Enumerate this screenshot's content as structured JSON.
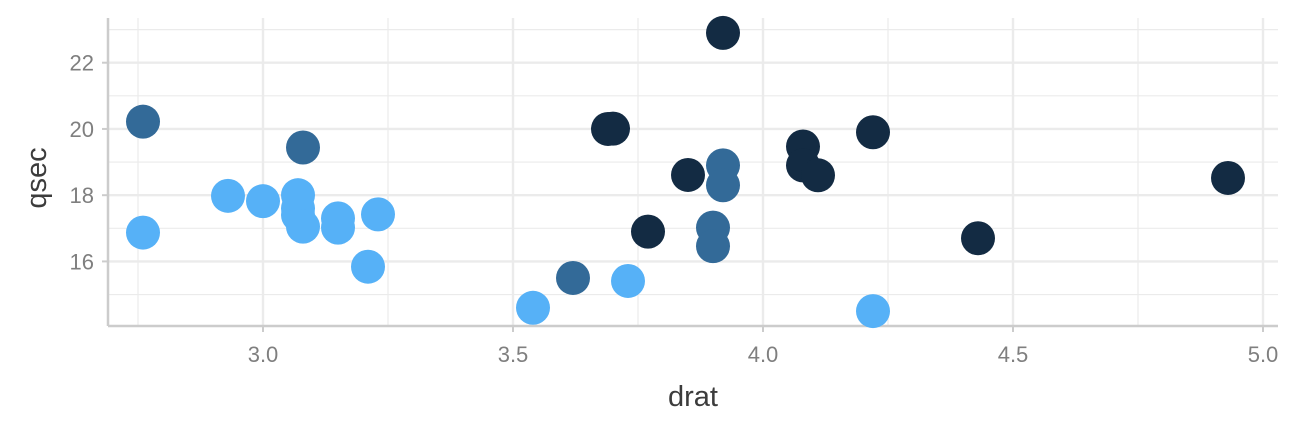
{
  "chart_data": {
    "type": "scatter",
    "xlabel": "drat",
    "ylabel": "qsec",
    "xlim": [
      2.69,
      5.03
    ],
    "ylim": [
      14.05,
      23.35
    ],
    "x_ticks": [
      "3.0",
      "3.5",
      "4.0",
      "4.5",
      "5.0"
    ],
    "y_ticks": [
      "16",
      "18",
      "20",
      "22"
    ],
    "grid": true,
    "legend": "none",
    "colors": {
      "light": "#56b1f7",
      "mid": "#336a98",
      "dark": "#132b43",
      "grid": "#ebebeb",
      "axis": "#cccccc"
    },
    "points": [
      {
        "x": 2.76,
        "y": 20.22,
        "color": "mid"
      },
      {
        "x": 2.76,
        "y": 16.87,
        "color": "light"
      },
      {
        "x": 2.93,
        "y": 17.98,
        "color": "light"
      },
      {
        "x": 3.0,
        "y": 17.82,
        "color": "light"
      },
      {
        "x": 3.07,
        "y": 17.4,
        "color": "light"
      },
      {
        "x": 3.07,
        "y": 17.6,
        "color": "light"
      },
      {
        "x": 3.07,
        "y": 18.0,
        "color": "light"
      },
      {
        "x": 3.08,
        "y": 17.05,
        "color": "light"
      },
      {
        "x": 3.08,
        "y": 19.44,
        "color": "mid"
      },
      {
        "x": 3.15,
        "y": 17.02,
        "color": "light"
      },
      {
        "x": 3.15,
        "y": 17.3,
        "color": "light"
      },
      {
        "x": 3.21,
        "y": 15.84,
        "color": "light"
      },
      {
        "x": 3.23,
        "y": 17.42,
        "color": "light"
      },
      {
        "x": 3.54,
        "y": 14.6,
        "color": "light"
      },
      {
        "x": 3.62,
        "y": 15.5,
        "color": "mid"
      },
      {
        "x": 3.69,
        "y": 20.0,
        "color": "dark"
      },
      {
        "x": 3.7,
        "y": 20.01,
        "color": "dark"
      },
      {
        "x": 3.73,
        "y": 15.41,
        "color": "light"
      },
      {
        "x": 3.77,
        "y": 16.9,
        "color": "dark"
      },
      {
        "x": 3.85,
        "y": 18.61,
        "color": "dark"
      },
      {
        "x": 3.9,
        "y": 17.02,
        "color": "mid"
      },
      {
        "x": 3.9,
        "y": 16.46,
        "color": "mid"
      },
      {
        "x": 3.92,
        "y": 18.9,
        "color": "mid"
      },
      {
        "x": 3.92,
        "y": 18.3,
        "color": "mid"
      },
      {
        "x": 3.92,
        "y": 22.9,
        "color": "dark"
      },
      {
        "x": 4.08,
        "y": 19.47,
        "color": "dark"
      },
      {
        "x": 4.08,
        "y": 18.9,
        "color": "dark"
      },
      {
        "x": 4.11,
        "y": 18.6,
        "color": "dark"
      },
      {
        "x": 4.22,
        "y": 19.9,
        "color": "dark"
      },
      {
        "x": 4.22,
        "y": 14.5,
        "color": "light"
      },
      {
        "x": 4.43,
        "y": 16.7,
        "color": "dark"
      },
      {
        "x": 4.93,
        "y": 18.52,
        "color": "dark"
      }
    ]
  }
}
